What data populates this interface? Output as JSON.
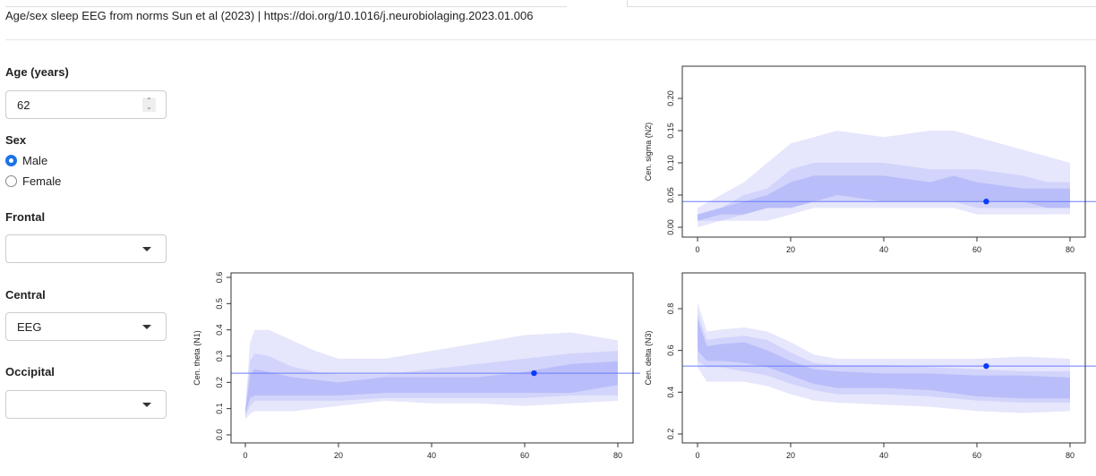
{
  "header": {
    "title": "Age/sex sleep EEG from norms Sun et al (2023) | https://doi.org/10.1016/j.neurobiolaging.2023.01.006"
  },
  "sidebar": {
    "age_label": "Age (years)",
    "age_value": "62",
    "sex_label": "Sex",
    "sex_options": [
      "Male",
      "Female"
    ],
    "sex_selected": "Male",
    "frontal_label": "Frontal",
    "frontal_value": "",
    "central_label": "Central",
    "central_value": "EEG",
    "occipital_label": "Occipital",
    "occipital_value": ""
  },
  "colors": {
    "outer": "#e6e6fc",
    "mid": "#d2d4fb",
    "inner": "#b9befa",
    "line": "#6b7bff",
    "point": "#0a3cff"
  },
  "chart_data": [
    {
      "id": "sigma",
      "type": "area",
      "ylabel": "Cen. sigma (N2)",
      "xlim": [
        0,
        80
      ],
      "ylim": [
        0,
        0.2
      ],
      "xticks": [
        "0",
        "20",
        "40",
        "60",
        "80"
      ],
      "yticks": [
        "0.00",
        "0.05",
        "0.10",
        "0.15",
        "0.20"
      ],
      "bands": [
        [
          0,
          0,
          0.01,
          0.01,
          0.02,
          0.02,
          0.03
        ],
        [
          5,
          0.01,
          0.01,
          0.02,
          0.03,
          0.03,
          0.05
        ],
        [
          10,
          0.01,
          0.02,
          0.02,
          0.04,
          0.05,
          0.07
        ],
        [
          15,
          0.01,
          0.03,
          0.03,
          0.05,
          0.06,
          0.1
        ],
        [
          20,
          0.02,
          0.03,
          0.03,
          0.07,
          0.09,
          0.13
        ],
        [
          25,
          0.03,
          0.04,
          0.04,
          0.08,
          0.1,
          0.14
        ],
        [
          30,
          0.03,
          0.04,
          0.05,
          0.08,
          0.1,
          0.15
        ],
        [
          40,
          0.03,
          0.04,
          0.04,
          0.08,
          0.1,
          0.14
        ],
        [
          50,
          0.03,
          0.04,
          0.04,
          0.07,
          0.09,
          0.15
        ],
        [
          55,
          0.03,
          0.04,
          0.04,
          0.08,
          0.09,
          0.15
        ],
        [
          60,
          0.02,
          0.03,
          0.04,
          0.07,
          0.09,
          0.14
        ],
        [
          70,
          0.02,
          0.03,
          0.04,
          0.06,
          0.08,
          0.12
        ],
        [
          75,
          0.02,
          0.03,
          0.03,
          0.06,
          0.07,
          0.11
        ],
        [
          80,
          0.02,
          0.03,
          0.03,
          0.06,
          0.07,
          0.1
        ]
      ],
      "hline": 0.04,
      "point": [
        62,
        0.04
      ]
    },
    {
      "id": "theta",
      "type": "area",
      "ylabel": "Cen. theta (N1)",
      "xlim": [
        0,
        80
      ],
      "ylim": [
        0,
        0.6
      ],
      "xticks": [
        "0",
        "20",
        "40",
        "60",
        "80"
      ],
      "yticks": [
        "0.0",
        "0.1",
        "0.2",
        "0.3",
        "0.4",
        "0.5",
        "0.6"
      ],
      "bands": [
        [
          0,
          0.06,
          0.07,
          0.08,
          0.09,
          0.1,
          0.1
        ],
        [
          1,
          0.08,
          0.11,
          0.14,
          0.23,
          0.28,
          0.35
        ],
        [
          2,
          0.09,
          0.13,
          0.15,
          0.25,
          0.31,
          0.4
        ],
        [
          5,
          0.09,
          0.13,
          0.15,
          0.24,
          0.3,
          0.4
        ],
        [
          10,
          0.09,
          0.13,
          0.15,
          0.22,
          0.26,
          0.36
        ],
        [
          15,
          0.1,
          0.13,
          0.15,
          0.21,
          0.24,
          0.32
        ],
        [
          20,
          0.11,
          0.13,
          0.15,
          0.2,
          0.23,
          0.29
        ],
        [
          30,
          0.13,
          0.14,
          0.16,
          0.22,
          0.23,
          0.29
        ],
        [
          40,
          0.12,
          0.14,
          0.16,
          0.22,
          0.25,
          0.32
        ],
        [
          50,
          0.12,
          0.14,
          0.16,
          0.22,
          0.27,
          0.35
        ],
        [
          60,
          0.11,
          0.14,
          0.16,
          0.24,
          0.29,
          0.38
        ],
        [
          70,
          0.12,
          0.15,
          0.16,
          0.27,
          0.31,
          0.39
        ],
        [
          80,
          0.13,
          0.15,
          0.19,
          0.28,
          0.32,
          0.36
        ]
      ],
      "hline": 0.235,
      "point": [
        62,
        0.235
      ]
    },
    {
      "id": "delta",
      "type": "area",
      "ylabel": "Cen. delta (N3)",
      "xlim": [
        0,
        80
      ],
      "ylim": [
        0.2,
        0.8
      ],
      "xticks": [
        "0",
        "20",
        "40",
        "60",
        "80"
      ],
      "yticks": [
        "0.2",
        "0.4",
        "0.6",
        "0.8"
      ],
      "bands": [
        [
          0,
          0.52,
          0.55,
          0.6,
          0.75,
          0.78,
          0.83
        ],
        [
          2,
          0.45,
          0.52,
          0.55,
          0.62,
          0.65,
          0.69
        ],
        [
          5,
          0.45,
          0.52,
          0.55,
          0.63,
          0.66,
          0.7
        ],
        [
          10,
          0.45,
          0.5,
          0.54,
          0.64,
          0.67,
          0.71
        ],
        [
          15,
          0.43,
          0.48,
          0.52,
          0.6,
          0.65,
          0.69
        ],
        [
          20,
          0.39,
          0.44,
          0.48,
          0.55,
          0.59,
          0.64
        ],
        [
          25,
          0.36,
          0.41,
          0.44,
          0.51,
          0.54,
          0.58
        ],
        [
          30,
          0.35,
          0.39,
          0.42,
          0.5,
          0.53,
          0.56
        ],
        [
          40,
          0.34,
          0.39,
          0.42,
          0.49,
          0.53,
          0.56
        ],
        [
          50,
          0.33,
          0.38,
          0.41,
          0.49,
          0.52,
          0.56
        ],
        [
          60,
          0.31,
          0.36,
          0.38,
          0.48,
          0.51,
          0.56
        ],
        [
          70,
          0.3,
          0.35,
          0.37,
          0.48,
          0.5,
          0.57
        ],
        [
          80,
          0.31,
          0.35,
          0.37,
          0.47,
          0.5,
          0.56
        ]
      ],
      "hline": 0.525,
      "point": [
        62,
        0.525
      ]
    }
  ]
}
